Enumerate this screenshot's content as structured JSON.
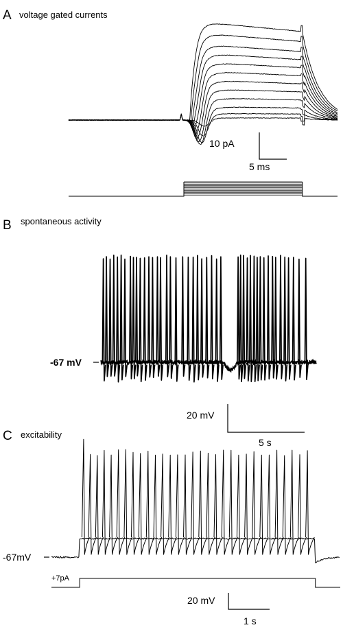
{
  "panels": {
    "a": {
      "letter": "A",
      "title": "voltage gated currents"
    },
    "b": {
      "letter": "B",
      "title": "spontaneous activity"
    },
    "c": {
      "letter": "C",
      "title": "excitability"
    }
  },
  "chart_data": [
    {
      "type": "line",
      "panel": "A",
      "title": "voltage gated currents",
      "xlabel": "",
      "ylabel": "",
      "axes_visible": false,
      "grid": false,
      "scale_bars": {
        "x": {
          "value": 5,
          "unit": "ms",
          "label": "5 ms"
        },
        "y": {
          "value": 10,
          "unit": "pA",
          "label": "10 pA"
        }
      },
      "time_range_ms": [
        -18,
        24
      ],
      "step_window_ms": [
        0,
        18.5
      ],
      "traces": [
        {
          "step_index": 0,
          "inward_peak_pA": -3,
          "outward_steady_pA": 1
        },
        {
          "step_index": 1,
          "inward_peak_pA": -8,
          "outward_steady_pA": 3
        },
        {
          "step_index": 2,
          "inward_peak_pA": -12,
          "outward_steady_pA": 6
        },
        {
          "step_index": 3,
          "inward_peak_pA": -14,
          "outward_steady_pA": 10
        },
        {
          "step_index": 4,
          "inward_peak_pA": -14,
          "outward_steady_pA": 14
        },
        {
          "step_index": 5,
          "inward_peak_pA": -13,
          "outward_steady_pA": 18
        },
        {
          "step_index": 6,
          "inward_peak_pA": -12,
          "outward_steady_pA": 22
        },
        {
          "step_index": 7,
          "inward_peak_pA": -10,
          "outward_steady_pA": 26
        },
        {
          "step_index": 8,
          "inward_peak_pA": -8,
          "outward_steady_pA": 30
        },
        {
          "step_index": 9,
          "inward_peak_pA": -6,
          "outward_steady_pA": 34
        },
        {
          "step_index": 10,
          "inward_peak_pA": -4,
          "outward_steady_pA": 39
        },
        {
          "step_index": 11,
          "inward_peak_pA": -2,
          "outward_steady_pA": 44
        }
      ]
    },
    {
      "type": "line",
      "panel": "B",
      "title": "spontaneous activity",
      "xlabel": "",
      "ylabel": "",
      "axes_visible": false,
      "grid": false,
      "baseline_label": "-67 mV",
      "baseline_mV": -67,
      "spike_peak_mV": 20,
      "spike_trough_mV": -78,
      "scale_bars": {
        "x": {
          "value": 5,
          "unit": "s",
          "label": "5 s"
        },
        "y": {
          "value": 20,
          "unit": "mV",
          "label": "20 mV"
        }
      },
      "time_range_s": [
        0,
        35
      ],
      "spike_times_s": [
        0.4,
        0.9,
        1.5,
        2.1,
        2.7,
        3.3,
        3.9,
        4.8,
        5.3,
        5.8,
        6.4,
        7.1,
        7.8,
        8.4,
        9.2,
        9.7,
        10.7,
        11.3,
        12.2,
        13.3,
        14.2,
        15.0,
        15.7,
        16.4,
        17.2,
        18.0,
        18.8,
        19.5,
        22.3,
        22.7,
        23.2,
        23.8,
        24.3,
        24.9,
        25.4,
        25.9,
        26.5,
        27.2,
        27.9,
        28.4,
        29.2,
        29.9,
        30.5,
        31.3,
        32.2,
        33.3
      ]
    },
    {
      "type": "line",
      "panel": "C",
      "title": "excitability",
      "xlabel": "",
      "ylabel": "",
      "axes_visible": false,
      "grid": false,
      "baseline_label": "-67mV",
      "baseline_mV": -67,
      "injected_current_label": "+7pA",
      "injected_current_pA": 7,
      "step_window_s": [
        0,
        7.1
      ],
      "time_range_s": [
        -0.85,
        7.85
      ],
      "first_spike_peak_mV": 22,
      "spike_peak_mV": 12,
      "ahp_trough_mV": -65,
      "scale_bars": {
        "x": {
          "value": 1,
          "unit": "s",
          "label": "1 s"
        },
        "y": {
          "value": 20,
          "unit": "mV",
          "label": "20 mV"
        }
      },
      "spike_times_s": [
        0.12,
        0.32,
        0.53,
        0.74,
        0.95,
        1.17,
        1.39,
        1.61,
        1.83,
        2.06,
        2.28,
        2.5,
        2.73,
        2.95,
        3.18,
        3.41,
        3.64,
        3.87,
        4.1,
        4.33,
        4.56,
        4.79,
        5.02,
        5.25,
        5.48,
        5.71,
        5.94,
        6.17,
        6.4,
        6.63,
        6.86
      ]
    }
  ]
}
